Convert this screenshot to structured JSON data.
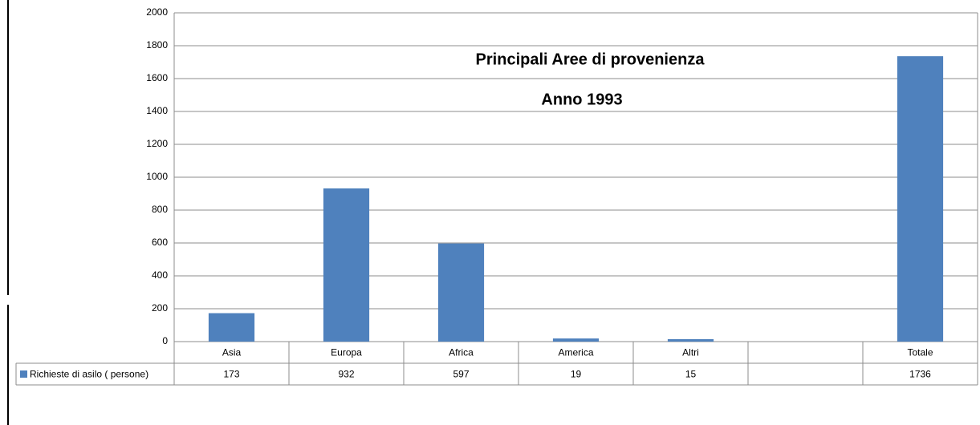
{
  "chart_data": {
    "type": "bar",
    "title": "Principali Aree di provenienza",
    "subtitle": "Anno 1993",
    "categories": [
      "Asia",
      "Europa",
      "Africa",
      "America",
      "Altri",
      null,
      "Totale"
    ],
    "series": [
      {
        "name": "Richieste di asilo ( persone)",
        "color": "#4f81bd",
        "values": [
          173,
          932,
          597,
          19,
          15,
          null,
          1736
        ]
      }
    ],
    "ylim": [
      0,
      2000
    ],
    "yticks": [
      0,
      200,
      400,
      600,
      800,
      1000,
      1200,
      1400,
      1600,
      1800,
      2000
    ],
    "grid": true
  }
}
